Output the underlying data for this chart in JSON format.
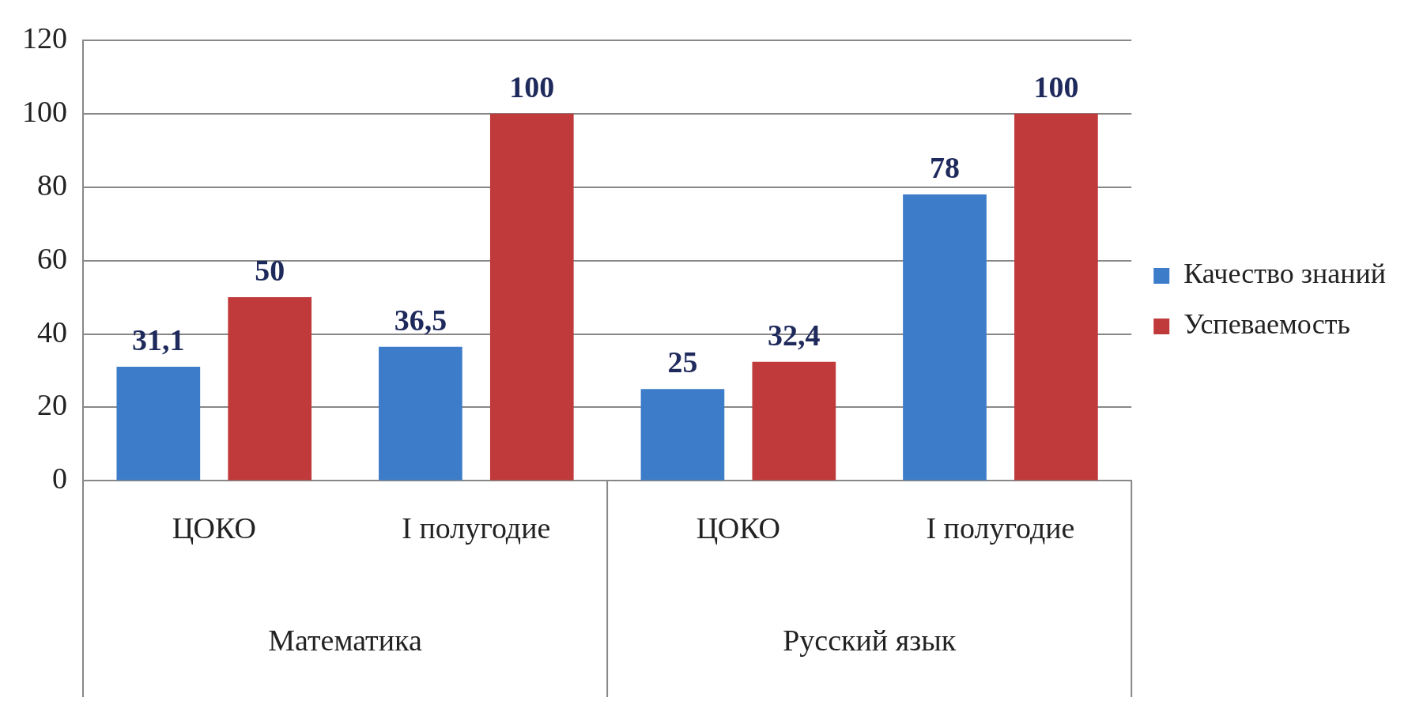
{
  "chart_data": {
    "type": "bar",
    "categories": [
      "ЦОКО",
      "I полугодие",
      "ЦОКО",
      "I полугодие"
    ],
    "series": [
      {
        "name": "Качество знаний",
        "color": "#3d7cc9",
        "values": [
          31.1,
          36.5,
          25,
          78
        ],
        "value_labels": [
          "31,1",
          "36,5",
          "25",
          "78"
        ]
      },
      {
        "name": "Успеваемость",
        "color": "#c0393b",
        "values": [
          50,
          100,
          32.4,
          100
        ],
        "value_labels": [
          "50",
          "100",
          "32,4",
          "100"
        ]
      }
    ],
    "annotations": [
      "Математика",
      "Русский язык"
    ],
    "ylim": [
      0,
      120
    ],
    "yticks": [
      0,
      20,
      40,
      60,
      80,
      100,
      120
    ],
    "grid": "y",
    "legend": "right"
  }
}
